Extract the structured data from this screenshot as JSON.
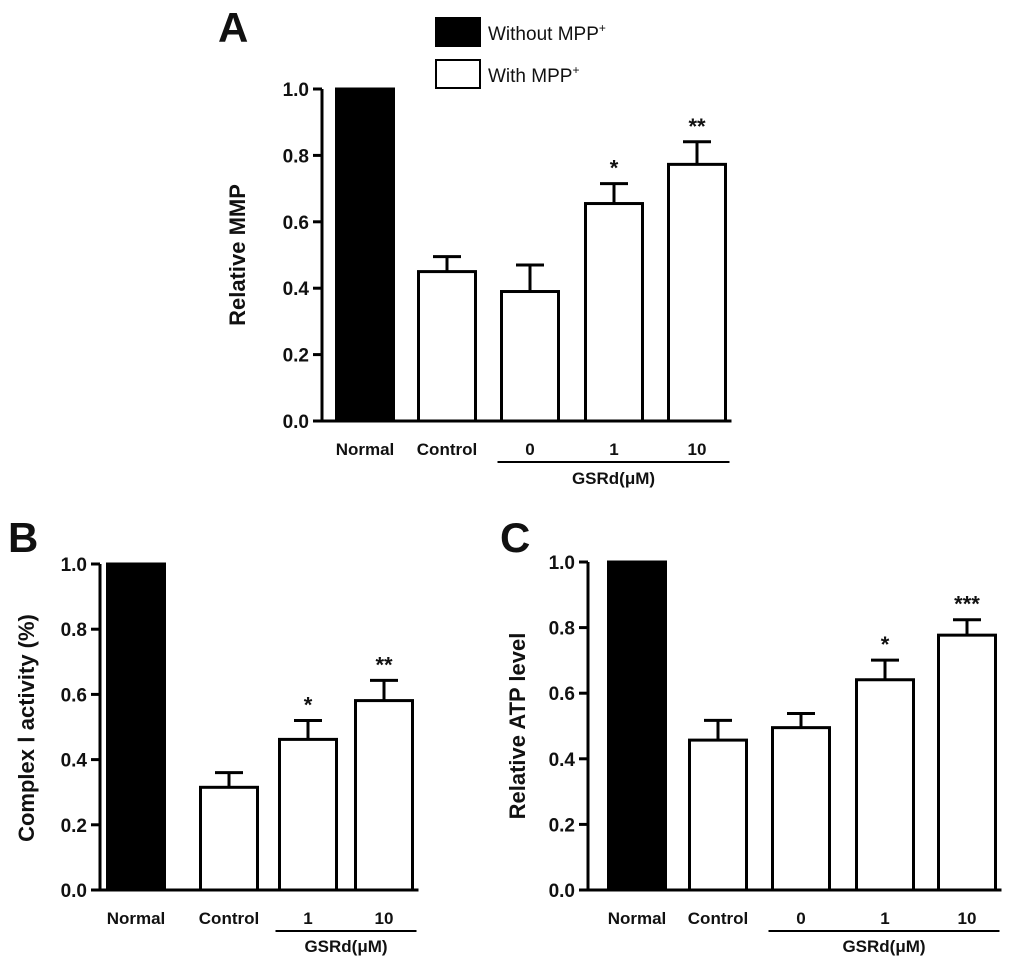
{
  "legend": {
    "without_label": "Without MPP",
    "with_label": "With MPP",
    "superscript": "+",
    "without_color": "#000000",
    "with_color": "#ffffff"
  },
  "chart_data": [
    {
      "panel": "A",
      "type": "bar",
      "title": "",
      "ylabel": "Relative MMP",
      "xlabel": "",
      "ylim": [
        0,
        1.0
      ],
      "yticks": [
        "0.0",
        "0.2",
        "0.4",
        "0.6",
        "0.8",
        "1.0"
      ],
      "categories": [
        "Normal",
        "Control",
        "0",
        "1",
        "10"
      ],
      "values": [
        1.0,
        0.45,
        0.39,
        0.655,
        0.773
      ],
      "errors": [
        0,
        0.045,
        0.08,
        0.06,
        0.068
      ],
      "fills": [
        "#000000",
        "#ffffff",
        "#ffffff",
        "#ffffff",
        "#ffffff"
      ],
      "significance": [
        "",
        "",
        "",
        "*",
        "**"
      ],
      "group_label": "GSRd(μM)",
      "group_span": [
        2,
        4
      ]
    },
    {
      "panel": "B",
      "type": "bar",
      "title": "",
      "ylabel": "Complex Ⅰ activity (%)",
      "xlabel": "",
      "ylim": [
        0,
        1.0
      ],
      "yticks": [
        "0.0",
        "0.2",
        "0.4",
        "0.6",
        "0.8",
        "1.0"
      ],
      "categories": [
        "Normal",
        "Control",
        "1",
        "10"
      ],
      "values": [
        1.0,
        0.315,
        0.462,
        0.581
      ],
      "errors": [
        0,
        0.045,
        0.058,
        0.062
      ],
      "fills": [
        "#000000",
        "#ffffff",
        "#ffffff",
        "#ffffff"
      ],
      "significance": [
        "",
        "",
        "*",
        "**"
      ],
      "group_label": "GSRd(μM)",
      "group_span": [
        2,
        3
      ]
    },
    {
      "panel": "C",
      "type": "bar",
      "title": "",
      "ylabel": "Relative ATP level",
      "xlabel": "",
      "ylim": [
        0,
        1.0
      ],
      "yticks": [
        "0.0",
        "0.2",
        "0.4",
        "0.6",
        "0.8",
        "1.0"
      ],
      "categories": [
        "Normal",
        "Control",
        "0",
        "1",
        "10"
      ],
      "values": [
        1.0,
        0.457,
        0.495,
        0.641,
        0.777
      ],
      "errors": [
        0,
        0.06,
        0.043,
        0.06,
        0.047
      ],
      "fills": [
        "#000000",
        "#ffffff",
        "#ffffff",
        "#ffffff",
        "#ffffff"
      ],
      "significance": [
        "",
        "",
        "",
        "*",
        "***"
      ],
      "group_label": "GSRd(μM)",
      "group_span": [
        2,
        4
      ]
    }
  ]
}
